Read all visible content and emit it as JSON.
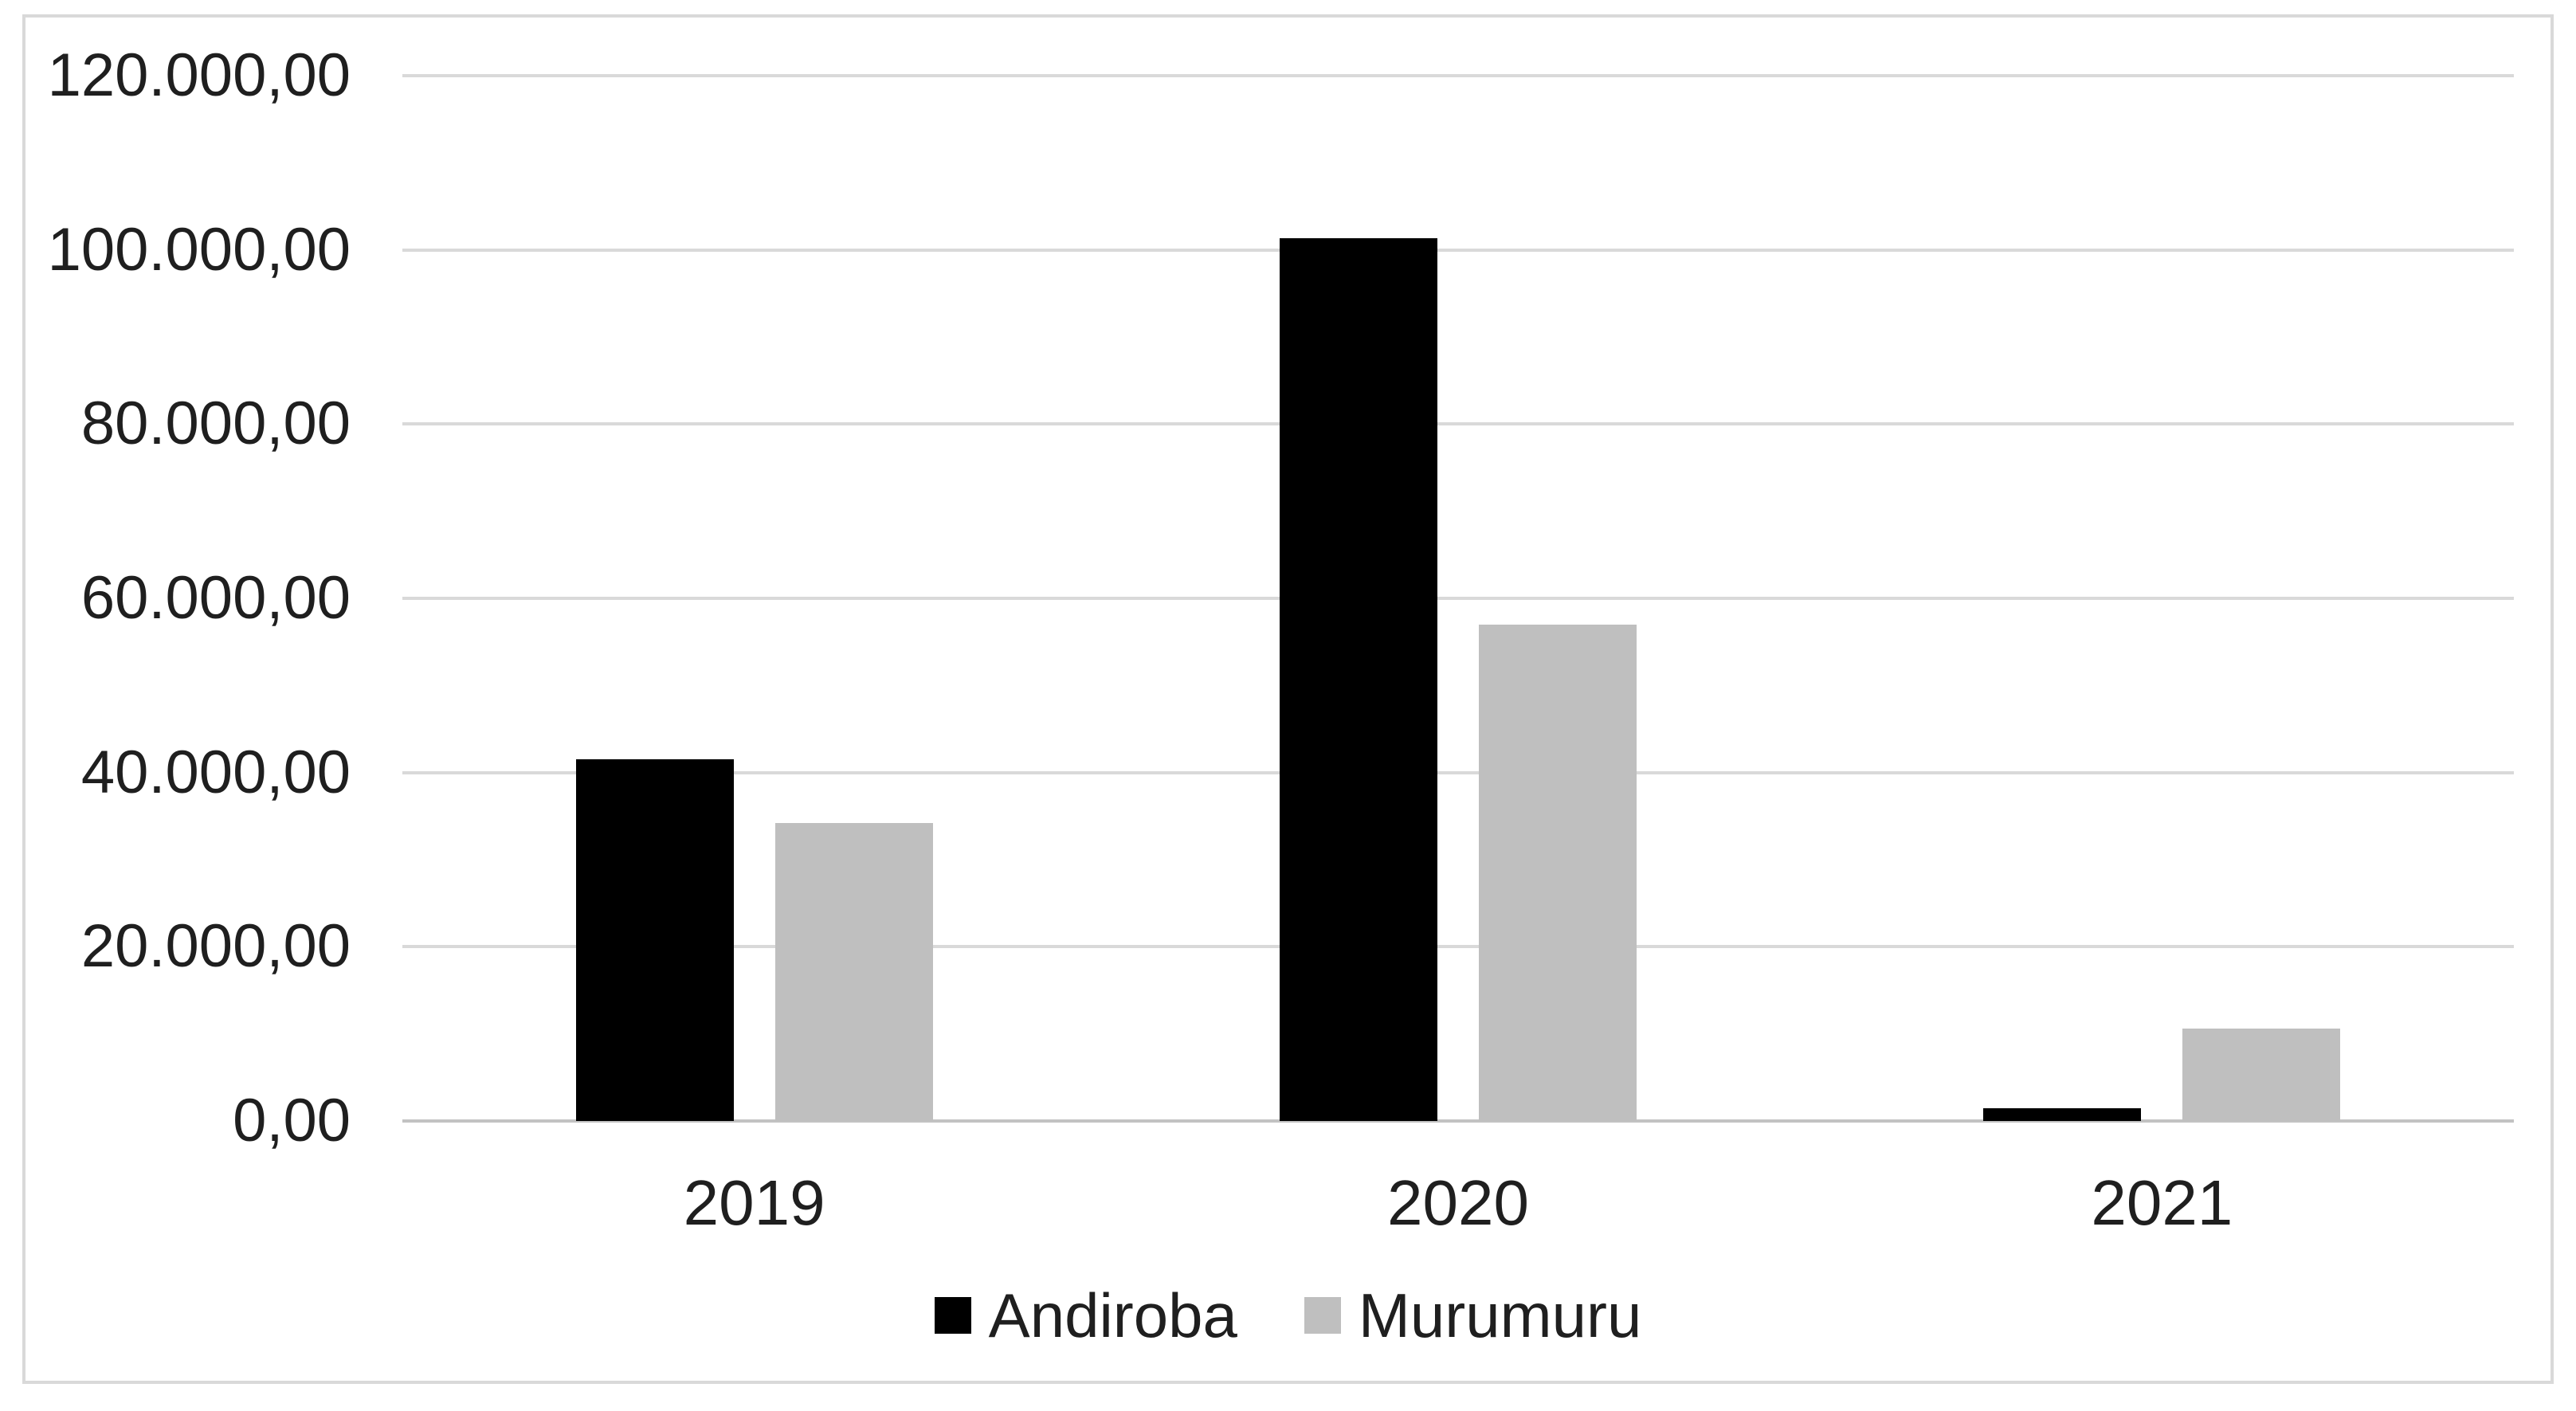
{
  "chart_data": {
    "type": "bar",
    "title": "",
    "categories": [
      "2019",
      "2020",
      "2021"
    ],
    "series": [
      {
        "name": "Andiroba",
        "color": "#000000",
        "values": [
          41500,
          101300,
          1500
        ]
      },
      {
        "name": "Murumuru",
        "color": "#bfbfbf",
        "values": [
          34200,
          57000,
          10600
        ]
      }
    ],
    "y_axis": {
      "min": 0,
      "max": 120000,
      "step": 20000,
      "ticks": [
        {
          "value": 0,
          "label": "0,00"
        },
        {
          "value": 20000,
          "label": "20.000,00"
        },
        {
          "value": 40000,
          "label": "40.000,00"
        },
        {
          "value": 60000,
          "label": "60.000,00"
        },
        {
          "value": 80000,
          "label": "80.000,00"
        },
        {
          "value": 100000,
          "label": "100.000,00"
        },
        {
          "value": 120000,
          "label": "120.000,00"
        }
      ]
    },
    "legend": {
      "position": "bottom",
      "entries": [
        "Andiroba",
        "Murumuru"
      ]
    },
    "grid": true,
    "colors": {
      "gridline": "#d9d9d9",
      "axis_line": "#c2c2c2",
      "frame_border": "#d9d9d9",
      "text": "#1f1f1f",
      "background": "#ffffff"
    }
  }
}
